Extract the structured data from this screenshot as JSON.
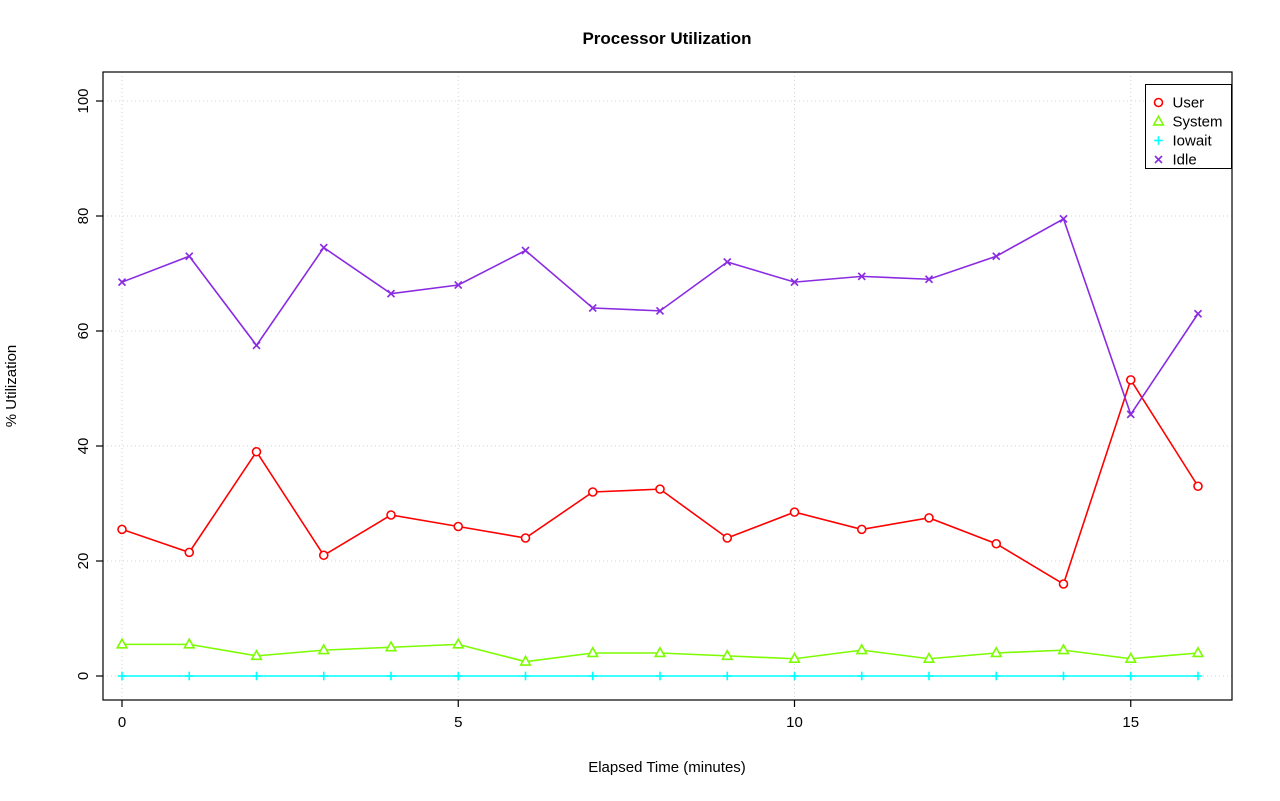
{
  "chart_data": {
    "type": "line",
    "title": "Processor Utilization",
    "xlabel": "Elapsed Time (minutes)",
    "ylabel": "% Utilization",
    "x": [
      0,
      1,
      2,
      3,
      4,
      5,
      6,
      7,
      8,
      9,
      10,
      11,
      12,
      13,
      14,
      15,
      16
    ],
    "xticks": [
      0,
      5,
      10,
      15
    ],
    "yticks": [
      0,
      20,
      40,
      60,
      80,
      100
    ],
    "xlim": [
      0,
      16
    ],
    "ylim": [
      0,
      100
    ],
    "grid": true,
    "grid_color": "#d3d3d3",
    "legend_position": "top-right",
    "series": [
      {
        "name": "User",
        "color": "#ff0000",
        "marker": "circle",
        "values": [
          25.5,
          21.5,
          39,
          21,
          28,
          26,
          24,
          32,
          32.5,
          24,
          28.5,
          25.5,
          27.5,
          23,
          16,
          51.5,
          33
        ]
      },
      {
        "name": "System",
        "color": "#7cfc00",
        "marker": "triangle",
        "values": [
          5.5,
          5.5,
          3.5,
          4.5,
          5,
          5.5,
          2.5,
          4,
          4,
          3.5,
          3,
          4.5,
          3,
          4,
          4.5,
          3,
          4
        ]
      },
      {
        "name": "Iowait",
        "color": "#00ffff",
        "marker": "plus",
        "values": [
          0,
          0,
          0,
          0,
          0,
          0,
          0,
          0,
          0,
          0,
          0,
          0,
          0,
          0,
          0,
          0,
          0
        ]
      },
      {
        "name": "Idle",
        "color": "#8a2be2",
        "marker": "x",
        "values": [
          68.5,
          73,
          57.5,
          74.5,
          66.5,
          68,
          74,
          64,
          63.5,
          72,
          68.5,
          69.5,
          69,
          73,
          79.5,
          45.5,
          63
        ]
      }
    ]
  }
}
